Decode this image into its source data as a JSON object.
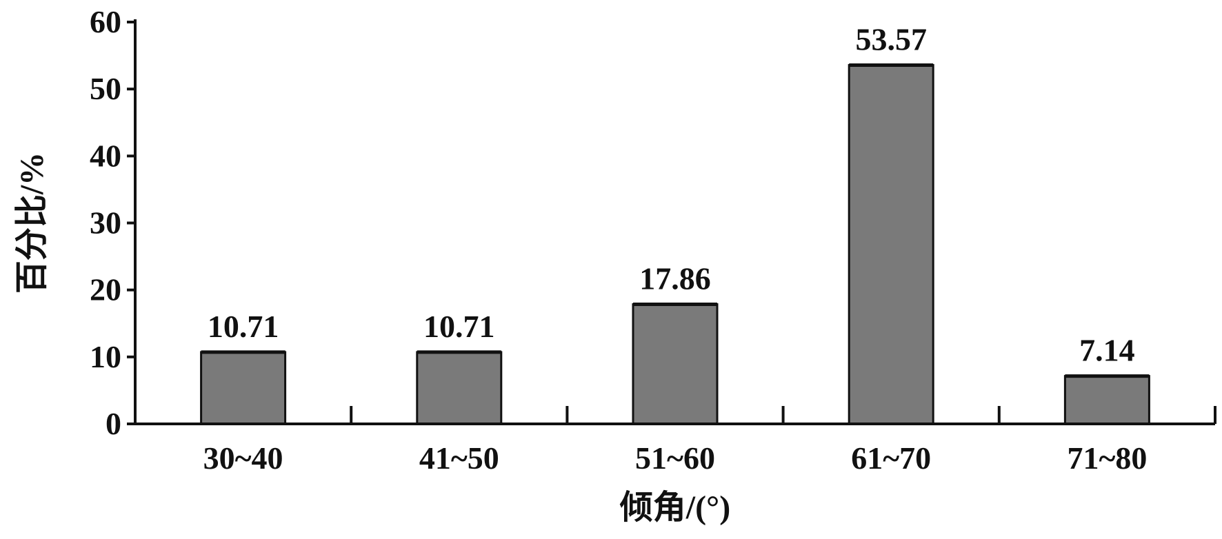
{
  "chart_data": {
    "type": "bar",
    "categories": [
      "30~40",
      "41~50",
      "51~60",
      "61~70",
      "71~80"
    ],
    "values": [
      10.71,
      10.71,
      17.86,
      53.57,
      7.14
    ],
    "data_labels": [
      "10.71",
      "10.71",
      "17.86",
      "53.57",
      "7.14"
    ],
    "title": "",
    "xlabel": "倾角/(°)",
    "ylabel": "百分比/%",
    "ylim": [
      0,
      60
    ],
    "yticks": [
      "0",
      "10",
      "20",
      "30",
      "40",
      "50",
      "60"
    ],
    "ytick_values": [
      0,
      10,
      20,
      30,
      40,
      50,
      60
    ],
    "grid": false,
    "legend": "none",
    "colors": {
      "bar_fill": "#7a7a7a",
      "bar_edge": "#111111",
      "axis": "#111111",
      "text": "#111111"
    }
  }
}
